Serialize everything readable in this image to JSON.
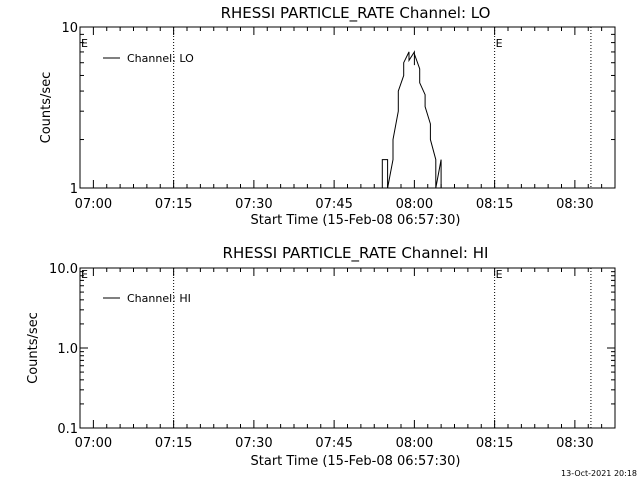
{
  "chart_data": [
    {
      "type": "line",
      "title": "RHESSI PARTICLE_RATE Channel: LO",
      "xlabel": "Start Time (15-Feb-08 06:57:30)",
      "ylabel": "Counts/sec",
      "y_scale": "log",
      "ylim": [
        1,
        10
      ],
      "y_ticks": [
        "10",
        "1"
      ],
      "xlim": [
        "06:57:30",
        "08:37:30"
      ],
      "x_ticks": [
        "07:00",
        "07:15",
        "07:30",
        "07:45",
        "08:00",
        "08:15",
        "08:30"
      ],
      "vlines": [
        "07:15",
        "08:15",
        "08:33"
      ],
      "markers": [
        {
          "label": "E",
          "x": "06:57:30"
        },
        {
          "label": "E",
          "x": "08:15"
        }
      ],
      "legend": "top-left",
      "series": [
        {
          "name": "Channel: LO",
          "x": [
            "07:54",
            "07:54",
            "07:55",
            "07:55",
            "07:56",
            "07:56",
            "07:57",
            "07:57",
            "07:58",
            "07:58",
            "07:59",
            "07:59",
            "08:00",
            "08:00",
            "08:00",
            "08:01",
            "08:01",
            "08:02",
            "08:02",
            "08:03",
            "08:03",
            "08:04",
            "08:04",
            "08:05",
            "08:05",
            "08:06",
            "08:06"
          ],
          "y": [
            1,
            1.5,
            1.5,
            1,
            1.5,
            2,
            3,
            4,
            5,
            6,
            7,
            6.2,
            7,
            5.8,
            6.8,
            5.5,
            4.5,
            3.8,
            3.2,
            2.5,
            2,
            1.5,
            1,
            1.5,
            1,
            1,
            1
          ]
        }
      ]
    },
    {
      "type": "line",
      "title": "RHESSI PARTICLE_RATE Channel: HI",
      "xlabel": "Start Time (15-Feb-08 06:57:30)",
      "ylabel": "Counts/sec",
      "y_scale": "log",
      "ylim": [
        0.1,
        10
      ],
      "y_ticks": [
        "10.0",
        "1.0",
        "0.1"
      ],
      "xlim": [
        "06:57:30",
        "08:37:30"
      ],
      "x_ticks": [
        "07:00",
        "07:15",
        "07:30",
        "07:45",
        "08:00",
        "08:15",
        "08:30"
      ],
      "vlines": [
        "07:15",
        "08:15",
        "08:33"
      ],
      "markers": [
        {
          "label": "E",
          "x": "06:57:30"
        },
        {
          "label": "E",
          "x": "08:15"
        }
      ],
      "legend": "top-left",
      "series": [
        {
          "name": "Channel: HI",
          "x": [],
          "y": []
        }
      ]
    }
  ],
  "footer": {
    "timestamp": "13-Oct-2021 20:18"
  }
}
